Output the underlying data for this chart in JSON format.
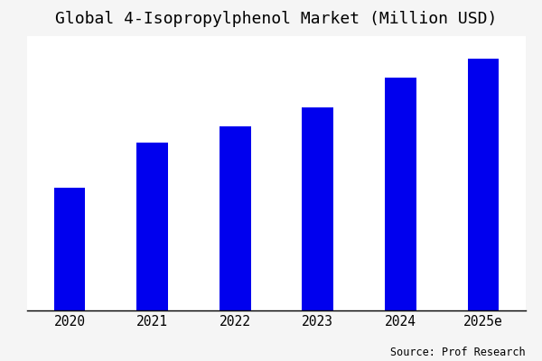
{
  "title": "Global 4-Isopropylphenol Market (Million USD)",
  "categories": [
    "2020",
    "2021",
    "2022",
    "2023",
    "2024",
    "2025e"
  ],
  "values": [
    38,
    52,
    57,
    63,
    72,
    78
  ],
  "bar_color": "#0000EE",
  "background_color": "#f5f5f5",
  "plot_background_color": "#ffffff",
  "source_text": "Source: Prof Research",
  "title_fontsize": 13,
  "tick_fontsize": 10.5,
  "source_fontsize": 8.5,
  "ylim": [
    0,
    85
  ],
  "bar_width": 0.38
}
